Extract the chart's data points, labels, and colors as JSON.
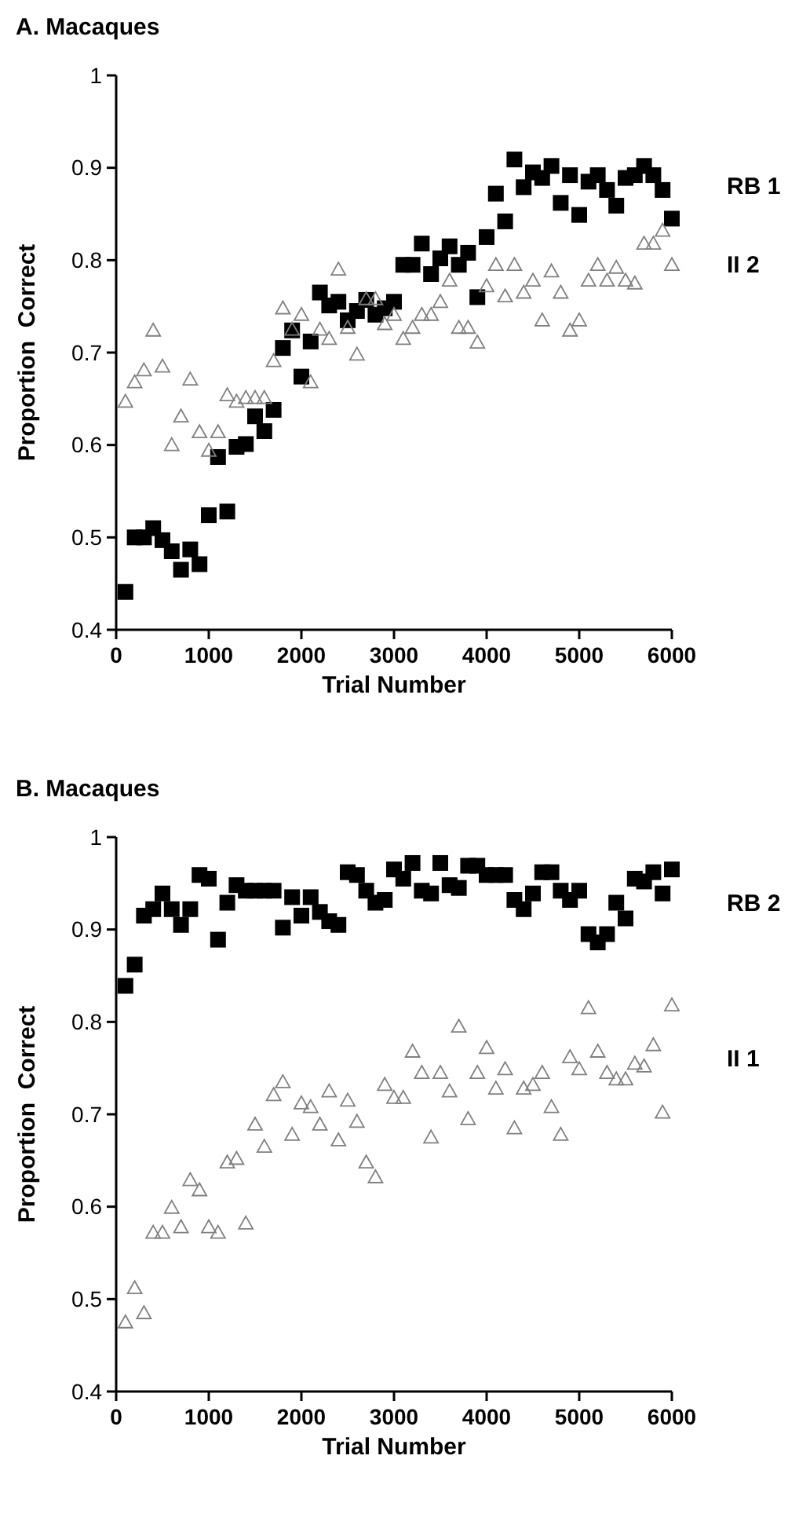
{
  "chart_data": [
    {
      "type": "scatter",
      "title": "A. Macaques",
      "xlabel": "Trial Number",
      "ylabel": "Proportion  Correct",
      "xlim": [
        0,
        6000
      ],
      "ylim": [
        0.4,
        1
      ],
      "xticks": [
        0,
        1000,
        2000,
        3000,
        4000,
        5000,
        6000
      ],
      "yticks": [
        0.4,
        0.5,
        0.6,
        0.7,
        0.8,
        0.9,
        1
      ],
      "grid": false,
      "x": [
        100,
        200,
        300,
        400,
        500,
        600,
        700,
        800,
        900,
        1000,
        1100,
        1200,
        1300,
        1400,
        1500,
        1600,
        1700,
        1800,
        1900,
        2000,
        2100,
        2200,
        2300,
        2400,
        2500,
        2600,
        2700,
        2800,
        2900,
        3000,
        3100,
        3200,
        3300,
        3400,
        3500,
        3600,
        3700,
        3800,
        3900,
        4000,
        4100,
        4200,
        4300,
        4400,
        4500,
        4600,
        4700,
        4800,
        4900,
        5000,
        5100,
        5200,
        5300,
        5400,
        5500,
        5600,
        5700,
        5800,
        5900,
        6000
      ],
      "series": [
        {
          "name": "RB 1",
          "color": "#000000",
          "marker": "square",
          "values": [
            0.441,
            0.5,
            0.5,
            0.51,
            0.497,
            0.485,
            0.465,
            0.487,
            0.471,
            0.524,
            0.587,
            0.528,
            0.598,
            0.601,
            0.631,
            0.615,
            0.638,
            0.705,
            0.724,
            0.674,
            0.712,
            0.765,
            0.751,
            0.755,
            0.735,
            0.745,
            0.757,
            0.741,
            0.748,
            0.755,
            0.795,
            0.795,
            0.818,
            0.785,
            0.802,
            0.815,
            0.795,
            0.808,
            0.76,
            0.825,
            0.872,
            0.842,
            0.909,
            0.879,
            0.895,
            0.889,
            0.902,
            0.862,
            0.892,
            0.849,
            0.885,
            0.892,
            0.876,
            0.859,
            0.889,
            0.892,
            0.902,
            0.892,
            0.876,
            0.845
          ]
        },
        {
          "name": "II 2",
          "color": "#808080",
          "marker": "triangle",
          "values": [
            0.647,
            0.668,
            0.681,
            0.724,
            0.685,
            0.6,
            0.631,
            0.671,
            0.614,
            0.594,
            0.614,
            0.654,
            0.647,
            0.651,
            0.651,
            0.651,
            0.691,
            0.748,
            0.725,
            0.741,
            0.668,
            0.725,
            0.715,
            0.79,
            0.727,
            0.698,
            0.758,
            0.758,
            0.731,
            0.741,
            0.715,
            0.727,
            0.741,
            0.741,
            0.755,
            0.778,
            0.727,
            0.727,
            0.711,
            0.772,
            0.795,
            0.761,
            0.795,
            0.765,
            0.778,
            0.735,
            0.788,
            0.765,
            0.724,
            0.735,
            0.778,
            0.795,
            0.778,
            0.792,
            0.778,
            0.775,
            0.818,
            0.818,
            0.832,
            0.795
          ]
        }
      ]
    },
    {
      "type": "scatter",
      "title": "B. Macaques",
      "xlabel": "Trial Number",
      "ylabel": "Proportion  Correct",
      "xlim": [
        0,
        6000
      ],
      "ylim": [
        0.4,
        1
      ],
      "xticks": [
        0,
        1000,
        2000,
        3000,
        4000,
        5000,
        6000
      ],
      "yticks": [
        0.4,
        0.5,
        0.6,
        0.7,
        0.8,
        0.9,
        1
      ],
      "grid": false,
      "x": [
        100,
        200,
        300,
        400,
        500,
        600,
        700,
        800,
        900,
        1000,
        1100,
        1200,
        1300,
        1400,
        1500,
        1600,
        1700,
        1800,
        1900,
        2000,
        2100,
        2200,
        2300,
        2400,
        2500,
        2600,
        2700,
        2800,
        2900,
        3000,
        3100,
        3200,
        3300,
        3400,
        3500,
        3600,
        3700,
        3800,
        3900,
        4000,
        4100,
        4200,
        4300,
        4400,
        4500,
        4600,
        4700,
        4800,
        4900,
        5000,
        5100,
        5200,
        5300,
        5400,
        5500,
        5600,
        5700,
        5800,
        5900,
        6000
      ],
      "series": [
        {
          "name": "RB 2",
          "color": "#000000",
          "marker": "square",
          "values": [
            0.839,
            0.862,
            0.915,
            0.922,
            0.939,
            0.922,
            0.905,
            0.922,
            0.959,
            0.955,
            0.889,
            0.929,
            0.948,
            0.942,
            0.942,
            0.942,
            0.942,
            0.902,
            0.935,
            0.915,
            0.935,
            0.919,
            0.909,
            0.905,
            0.962,
            0.959,
            0.942,
            0.929,
            0.932,
            0.965,
            0.955,
            0.972,
            0.942,
            0.939,
            0.972,
            0.948,
            0.945,
            0.969,
            0.969,
            0.959,
            0.959,
            0.959,
            0.932,
            0.922,
            0.939,
            0.962,
            0.962,
            0.942,
            0.932,
            0.942,
            0.895,
            0.886,
            0.895,
            0.929,
            0.912,
            0.955,
            0.952,
            0.962,
            0.939,
            0.965
          ]
        },
        {
          "name": "II 1",
          "color": "#808080",
          "marker": "triangle",
          "values": [
            0.475,
            0.512,
            0.485,
            0.572,
            0.572,
            0.599,
            0.578,
            0.629,
            0.618,
            0.578,
            0.572,
            0.648,
            0.652,
            0.582,
            0.689,
            0.665,
            0.721,
            0.735,
            0.678,
            0.712,
            0.708,
            0.689,
            0.725,
            0.672,
            0.715,
            0.692,
            0.648,
            0.632,
            0.732,
            0.718,
            0.718,
            0.768,
            0.745,
            0.675,
            0.745,
            0.725,
            0.795,
            0.695,
            0.745,
            0.772,
            0.728,
            0.749,
            0.685,
            0.728,
            0.732,
            0.745,
            0.708,
            0.678,
            0.762,
            0.749,
            0.815,
            0.768,
            0.745,
            0.738,
            0.738,
            0.755,
            0.752,
            0.775,
            0.702,
            0.818
          ]
        }
      ]
    }
  ]
}
